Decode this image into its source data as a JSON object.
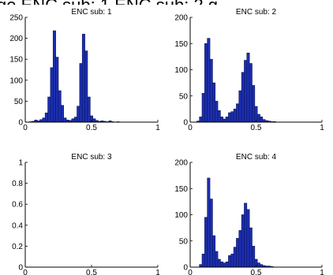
{
  "header_text": "ge   ENC sub: 1           ENC sub: 2      g",
  "colors": {
    "bar_fill": "#1c2fb0",
    "bar_stroke": "#0a145e",
    "axis": "#000000"
  },
  "chart_data": [
    {
      "type": "bar",
      "title": "ENC sub: 1",
      "xlim": [
        0,
        1
      ],
      "ylim": [
        0,
        250
      ],
      "x_ticks": [
        "0",
        "0.5",
        "1"
      ],
      "y_ticks": [
        "0",
        "50",
        "100",
        "150",
        "200",
        "250"
      ],
      "bin_width": 0.02,
      "series": [
        {
          "x": [
            0.04,
            0.06,
            0.08,
            0.1,
            0.12,
            0.14,
            0.16,
            0.18,
            0.2,
            0.22,
            0.24,
            0.26,
            0.28,
            0.3,
            0.32,
            0.34,
            0.36,
            0.38,
            0.4,
            0.42,
            0.44,
            0.46,
            0.48,
            0.5,
            0.52,
            0.54,
            0.56,
            0.58,
            0.6,
            0.62,
            0.64,
            0.66,
            0.7
          ],
          "values": [
            1,
            2,
            5,
            3,
            6,
            10,
            22,
            60,
            130,
            218,
            155,
            75,
            40,
            10,
            5,
            4,
            8,
            12,
            38,
            140,
            210,
            170,
            60,
            15,
            8,
            4,
            2,
            3,
            2,
            1,
            3,
            1,
            1
          ]
        }
      ]
    },
    {
      "type": "bar",
      "title": "ENC sub: 2",
      "xlim": [
        0,
        1
      ],
      "ylim": [
        0,
        200
      ],
      "x_ticks": [
        "0",
        "0.5",
        "1"
      ],
      "y_ticks": [
        "0",
        "50",
        "100",
        "150",
        "200"
      ],
      "bin_width": 0.02,
      "series": [
        {
          "x": [
            0.06,
            0.08,
            0.1,
            0.12,
            0.14,
            0.16,
            0.18,
            0.2,
            0.22,
            0.24,
            0.26,
            0.28,
            0.3,
            0.32,
            0.34,
            0.36,
            0.38,
            0.4,
            0.42,
            0.44,
            0.46,
            0.48,
            0.5,
            0.52,
            0.54,
            0.56,
            0.58,
            0.6,
            0.62,
            0.64
          ],
          "values": [
            2,
            10,
            55,
            150,
            160,
            120,
            75,
            40,
            22,
            10,
            6,
            10,
            18,
            20,
            25,
            35,
            60,
            95,
            118,
            132,
            112,
            70,
            30,
            15,
            10,
            5,
            3,
            2,
            1,
            1
          ]
        }
      ]
    },
    {
      "type": "bar",
      "title": "ENC sub: 3",
      "xlim": [
        0,
        1
      ],
      "ylim": [
        0,
        1
      ],
      "x_ticks": [
        "0",
        "0.5",
        "1"
      ],
      "y_ticks": [
        "0",
        "0.2",
        "0.4",
        "0.6",
        "0.8",
        "1"
      ],
      "bin_width": 0.02,
      "series": [
        {
          "x": [],
          "values": []
        }
      ]
    },
    {
      "type": "bar",
      "title": "ENC sub: 4",
      "xlim": [
        0,
        1
      ],
      "ylim": [
        0,
        200
      ],
      "x_ticks": [
        "0",
        "0.5",
        "1"
      ],
      "y_ticks": [
        "0",
        "50",
        "100",
        "150",
        "200"
      ],
      "bin_width": 0.02,
      "series": [
        {
          "x": [
            0.08,
            0.1,
            0.12,
            0.14,
            0.16,
            0.18,
            0.2,
            0.22,
            0.24,
            0.26,
            0.28,
            0.3,
            0.32,
            0.34,
            0.36,
            0.38,
            0.4,
            0.42,
            0.44,
            0.46,
            0.48,
            0.5,
            0.52,
            0.54,
            0.56,
            0.58,
            0.6,
            0.62
          ],
          "values": [
            5,
            25,
            95,
            170,
            130,
            60,
            30,
            15,
            10,
            8,
            10,
            22,
            25,
            38,
            55,
            70,
            100,
            122,
            110,
            75,
            40,
            15,
            8,
            5,
            3,
            2,
            2,
            1
          ]
        }
      ]
    }
  ]
}
